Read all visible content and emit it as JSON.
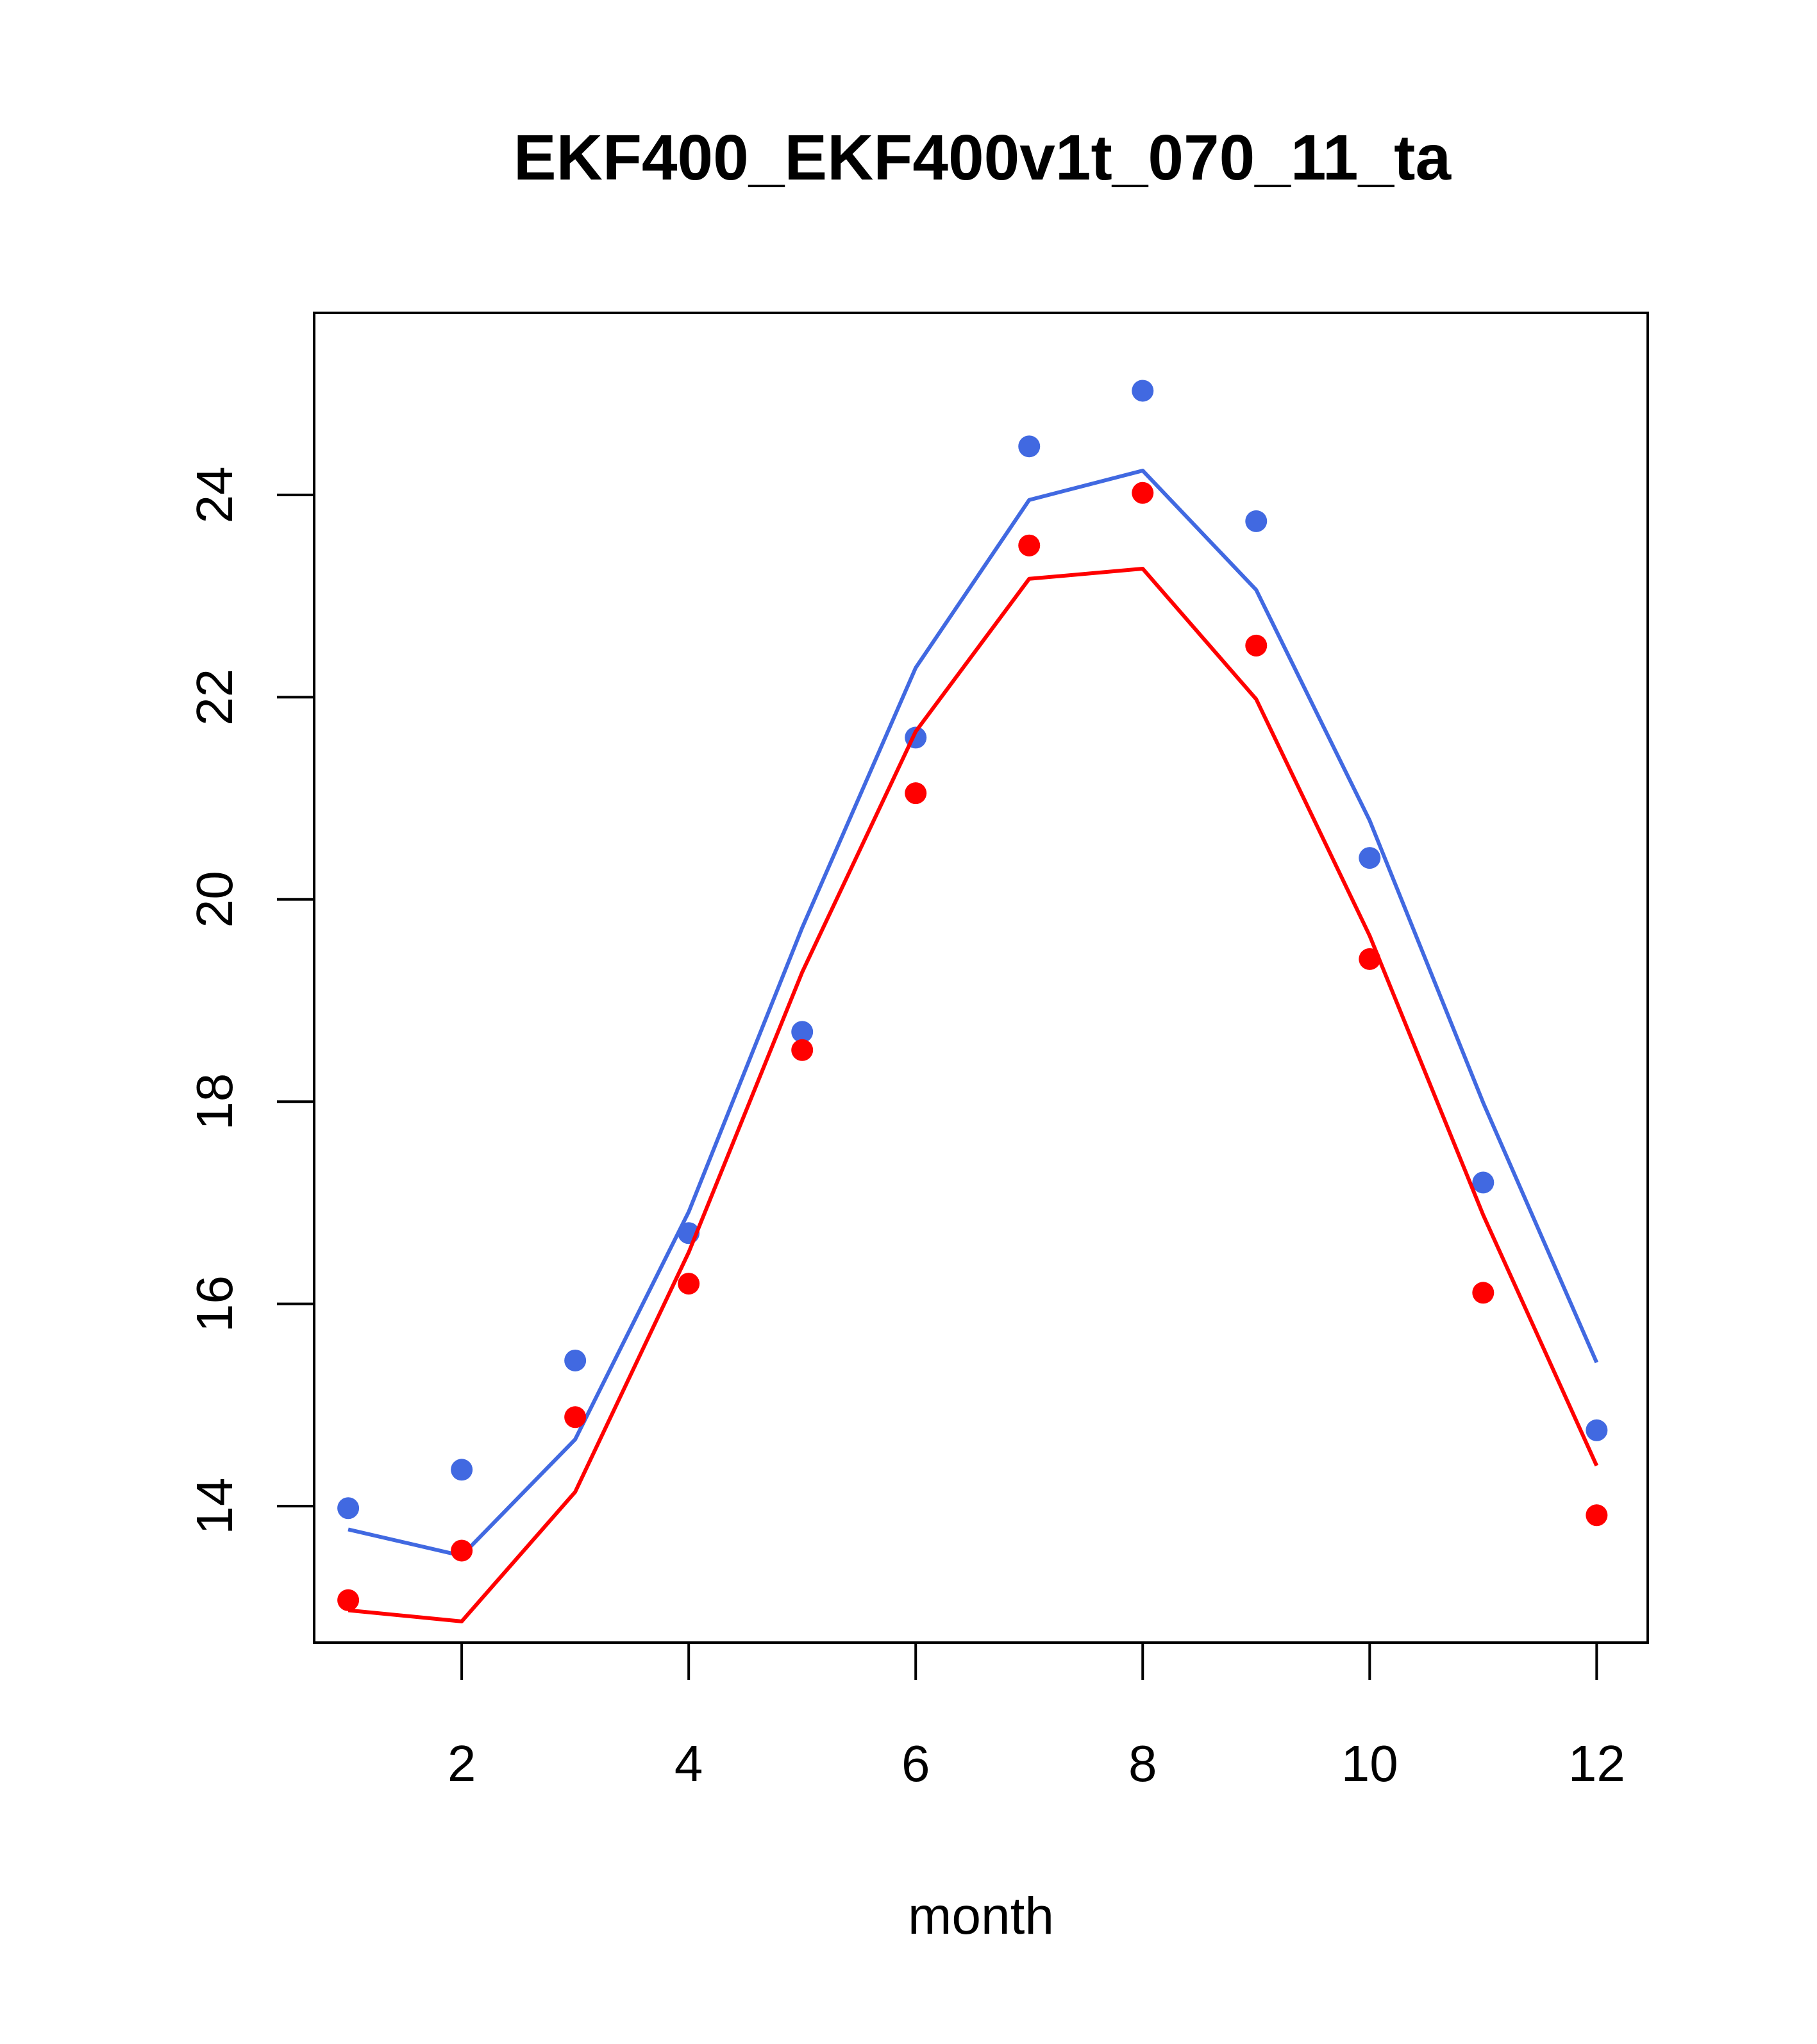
{
  "chart_data": {
    "type": "line",
    "title": "EKF400_EKF400v1t_070_11_ta",
    "xlabel": "month",
    "ylabel": "",
    "xlim": [
      0.7,
      12.45
    ],
    "ylim": [
      12.65,
      25.8
    ],
    "x_ticks": [
      2,
      4,
      6,
      8,
      10,
      12
    ],
    "y_ticks": [
      14,
      16,
      18,
      20,
      22,
      24
    ],
    "grid": false,
    "x": [
      1,
      2,
      3,
      4,
      5,
      6,
      7,
      8,
      9,
      10,
      11,
      12
    ],
    "series": [
      {
        "color": "#4169e1",
        "line": [
          13.77,
          13.51,
          14.66,
          16.91,
          19.72,
          22.29,
          23.95,
          24.24,
          23.06,
          20.78,
          17.99,
          15.42
        ],
        "points": [
          13.98,
          14.36,
          15.44,
          16.7,
          18.69,
          21.6,
          24.48,
          25.03,
          23.74,
          20.41,
          17.2,
          14.75
        ]
      },
      {
        "color": "#ff0000",
        "line": [
          12.97,
          12.86,
          14.14,
          16.51,
          19.28,
          21.66,
          23.17,
          23.27,
          21.98,
          19.64,
          16.88,
          14.4
        ],
        "points": [
          13.07,
          13.56,
          14.88,
          16.2,
          18.51,
          21.05,
          23.5,
          24.02,
          22.51,
          19.41,
          16.11,
          13.91
        ]
      }
    ]
  }
}
